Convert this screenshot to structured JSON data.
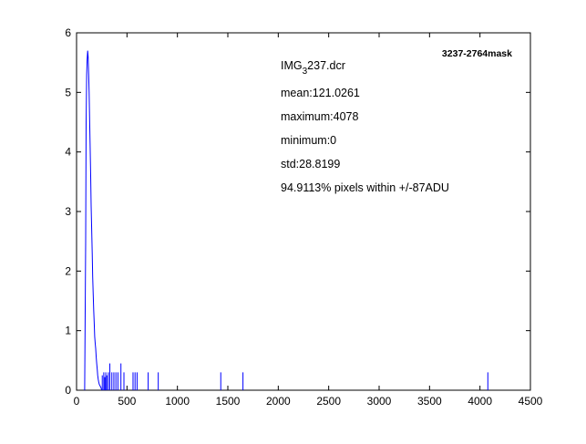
{
  "chart_data": {
    "type": "line",
    "title": "3237-2764mask",
    "xlabel": "",
    "ylabel": "",
    "xlim": [
      0,
      4500
    ],
    "ylim": [
      0,
      6
    ],
    "grid": false,
    "xticks": [
      0,
      500,
      1000,
      1500,
      2000,
      2500,
      3000,
      3500,
      4000,
      4500
    ],
    "yticks": [
      0,
      1,
      2,
      3,
      4,
      5,
      6
    ],
    "xtick_labels": [
      "0",
      "500",
      "1000",
      "1500",
      "2000",
      "2500",
      "3000",
      "3500",
      "4000",
      "4500"
    ],
    "ytick_labels": [
      "0",
      "1",
      "2",
      "3",
      "4",
      "5",
      "6"
    ],
    "line_color": "#0000ff",
    "series": [
      {
        "x": [
          80,
          90,
          95,
          100,
          105,
          110,
          115,
          120,
          125,
          130,
          135,
          140,
          145,
          150,
          155,
          160,
          165,
          170,
          175,
          180,
          185,
          190,
          195,
          200,
          205,
          210,
          215,
          220,
          225,
          230,
          240,
          250
        ],
        "y": [
          0,
          2.5,
          4.5,
          5.3,
          5.55,
          5.7,
          5.6,
          5.3,
          5.0,
          4.5,
          4.1,
          3.6,
          3.1,
          2.7,
          2.3,
          1.9,
          1.6,
          1.35,
          1.12,
          0.9,
          0.78,
          0.7,
          0.55,
          0.45,
          0.35,
          0.25,
          0.18,
          0.14,
          0.1,
          0.08,
          0.05,
          0
        ]
      }
    ],
    "spikes": [
      {
        "x": 255,
        "y": 0.25
      },
      {
        "x": 270,
        "y": 0.3
      },
      {
        "x": 280,
        "y": 0.22
      },
      {
        "x": 290,
        "y": 0.3
      },
      {
        "x": 300,
        "y": 0.25
      },
      {
        "x": 315,
        "y": 0.3
      },
      {
        "x": 330,
        "y": 0.45
      },
      {
        "x": 350,
        "y": 0.3
      },
      {
        "x": 370,
        "y": 0.3
      },
      {
        "x": 390,
        "y": 0.3
      },
      {
        "x": 410,
        "y": 0.3
      },
      {
        "x": 440,
        "y": 0.45
      },
      {
        "x": 470,
        "y": 0.3
      },
      {
        "x": 560,
        "y": 0.3
      },
      {
        "x": 580,
        "y": 0.3
      },
      {
        "x": 600,
        "y": 0.3
      },
      {
        "x": 710,
        "y": 0.3
      },
      {
        "x": 810,
        "y": 0.3
      },
      {
        "x": 1430,
        "y": 0.3
      },
      {
        "x": 1650,
        "y": 0.3
      },
      {
        "x": 4078,
        "y": 0.3
      }
    ],
    "annotations": {
      "filename_prefix": "IMG",
      "filename_sub": "3",
      "filename_suffix": "237.dcr",
      "lines": [
        "mean:121.0261",
        "maximum:4078",
        "minimum:0",
        "std:28.8199",
        "94.9113% pixels within +/-87ADU"
      ]
    }
  }
}
